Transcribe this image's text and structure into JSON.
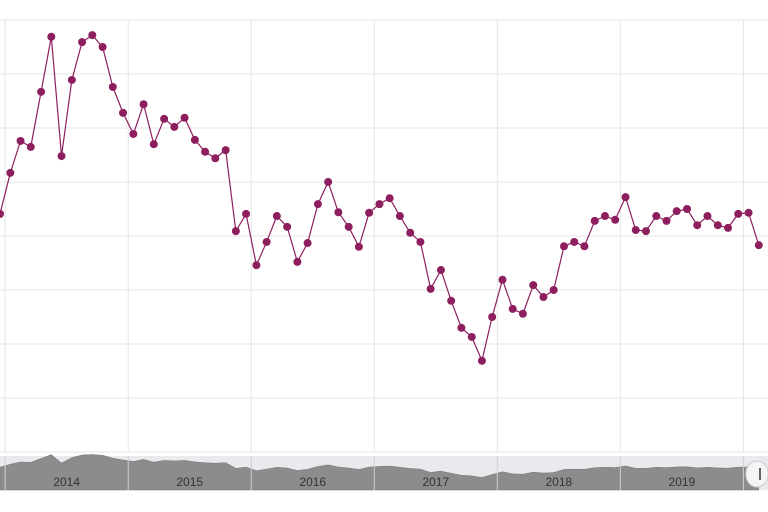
{
  "chart_data": {
    "type": "line",
    "x": [
      2013.958,
      2014.042,
      2014.125,
      2014.208,
      2014.292,
      2014.375,
      2014.458,
      2014.542,
      2014.625,
      2014.708,
      2014.792,
      2014.875,
      2014.958,
      2015.042,
      2015.125,
      2015.208,
      2015.292,
      2015.375,
      2015.458,
      2015.542,
      2015.625,
      2015.708,
      2015.792,
      2015.875,
      2015.958,
      2016.042,
      2016.125,
      2016.208,
      2016.292,
      2016.375,
      2016.458,
      2016.542,
      2016.625,
      2016.708,
      2016.792,
      2016.875,
      2016.958,
      2017.042,
      2017.125,
      2017.208,
      2017.292,
      2017.375,
      2017.458,
      2017.542,
      2017.625,
      2017.708,
      2017.792,
      2017.875,
      2017.958,
      2018.042,
      2018.125,
      2018.208,
      2018.292,
      2018.375,
      2018.458,
      2018.542,
      2018.625,
      2018.708,
      2018.792,
      2018.875,
      2018.958,
      2019.042,
      2019.125,
      2019.208,
      2019.292,
      2019.375,
      2019.458,
      2019.542,
      2019.625,
      2019.708,
      2019.792,
      2019.875,
      2019.958,
      2020.042,
      2020.125
    ],
    "series": [
      {
        "color": "#8e1f5e",
        "values": [
          4.41,
          5.17,
          5.76,
          5.65,
          6.67,
          7.69,
          5.48,
          6.89,
          7.59,
          7.72,
          7.5,
          6.76,
          6.28,
          5.89,
          6.44,
          5.7,
          6.17,
          6.02,
          6.19,
          5.78,
          5.56,
          5.44,
          5.59,
          4.09,
          4.41,
          3.46,
          3.89,
          4.37,
          4.17,
          3.52,
          3.87,
          4.59,
          5,
          4.44,
          4.17,
          3.8,
          4.43,
          4.59,
          4.7,
          4.37,
          4.06,
          3.89,
          3.02,
          3.37,
          2.8,
          2.3,
          2.13,
          1.69,
          2.5,
          3.19,
          2.65,
          2.56,
          3.09,
          2.87,
          3,
          3.81,
          3.89,
          3.81,
          4.28,
          4.37,
          4.3,
          4.72,
          4.11,
          4.09,
          4.37,
          4.28,
          4.46,
          4.5,
          4.2,
          4.37,
          4.2,
          4.15,
          4.41,
          4.43,
          3.83
        ]
      }
    ],
    "xlim": [
      2013.958,
      2020.2
    ],
    "xticks": [
      2014,
      2015,
      2016,
      2017,
      2018,
      2019,
      2020
    ],
    "ylim": [
      0,
      8
    ],
    "yticks": [
      0,
      1,
      2,
      3,
      4,
      5,
      6,
      7,
      8
    ],
    "grid": true,
    "navigator_labels": [
      2014,
      2015,
      2016,
      2017,
      2018,
      2019
    ]
  }
}
